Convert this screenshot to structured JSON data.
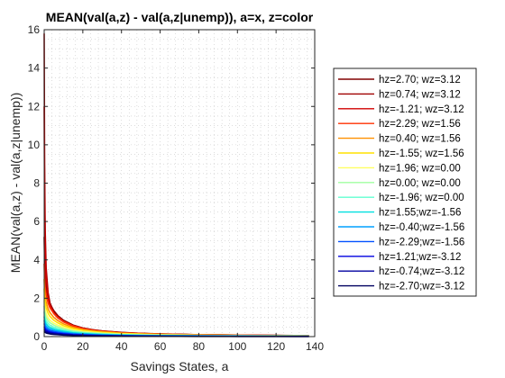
{
  "chart_data": {
    "type": "line",
    "title": "MEAN(val(a,z) - val(a,z|unemp)), a=x, z=color",
    "xlabel": "Savings States, a",
    "ylabel": "MEAN(val(a,z) - val(a,z|unemp))",
    "xlim": [
      0,
      140
    ],
    "ylim": [
      0,
      16
    ],
    "xticks": [
      0,
      20,
      40,
      60,
      80,
      100,
      120,
      140
    ],
    "yticks": [
      0,
      2,
      4,
      6,
      8,
      10,
      12,
      14,
      16
    ],
    "grid": "minor dotted",
    "legend_position": "right",
    "x": [
      0,
      0.2,
      0.5,
      1,
      2,
      3,
      5,
      7,
      10,
      15,
      20,
      25,
      30,
      40,
      50,
      60,
      70,
      80,
      90,
      100,
      110,
      120,
      130,
      137
    ],
    "series": [
      {
        "name": "hz=2.70; wz=3.12",
        "color": "#800000",
        "values": [
          5.2,
          4.0,
          3.2,
          2.6,
          2.0,
          1.7,
          1.35,
          1.1,
          0.85,
          0.6,
          0.45,
          0.36,
          0.3,
          0.22,
          0.17,
          0.14,
          0.12,
          0.1,
          0.09,
          0.08,
          0.07,
          0.06,
          0.055,
          0.05
        ]
      },
      {
        "name": "hz=0.74; wz=3.12",
        "color": "#a00000",
        "values": [
          15.8,
          9.0,
          5.6,
          3.6,
          2.3,
          1.75,
          1.3,
          1.05,
          0.82,
          0.58,
          0.44,
          0.35,
          0.29,
          0.21,
          0.17,
          0.14,
          0.12,
          0.1,
          0.09,
          0.08,
          0.07,
          0.06,
          0.055,
          0.05
        ]
      },
      {
        "name": "hz=-1.21; wz=3.12",
        "color": "#d00000",
        "values": [
          12.0,
          7.5,
          4.8,
          3.2,
          2.1,
          1.6,
          1.2,
          0.98,
          0.77,
          0.55,
          0.42,
          0.33,
          0.28,
          0.2,
          0.16,
          0.13,
          0.11,
          0.1,
          0.085,
          0.075,
          0.065,
          0.06,
          0.05,
          0.045
        ]
      },
      {
        "name": "hz=2.29; wz=1.56",
        "color": "#ff3000",
        "values": [
          3.8,
          3.1,
          2.6,
          2.2,
          1.75,
          1.5,
          1.2,
          1.0,
          0.78,
          0.56,
          0.42,
          0.34,
          0.28,
          0.2,
          0.16,
          0.13,
          0.11,
          0.095,
          0.085,
          0.075,
          0.065,
          0.058,
          0.052,
          0.048
        ]
      },
      {
        "name": "hz=0.40; wz=1.56",
        "color": "#ff9000",
        "values": [
          3.0,
          2.5,
          2.1,
          1.8,
          1.45,
          1.25,
          1.0,
          0.84,
          0.66,
          0.48,
          0.37,
          0.3,
          0.25,
          0.18,
          0.14,
          0.12,
          0.1,
          0.085,
          0.075,
          0.065,
          0.058,
          0.052,
          0.047,
          0.043
        ]
      },
      {
        "name": "hz=-1.55; wz=1.56",
        "color": "#ffe000",
        "values": [
          2.5,
          2.1,
          1.8,
          1.5,
          1.22,
          1.05,
          0.85,
          0.72,
          0.57,
          0.42,
          0.32,
          0.26,
          0.22,
          0.16,
          0.13,
          0.1,
          0.09,
          0.075,
          0.066,
          0.058,
          0.052,
          0.047,
          0.042,
          0.039
        ]
      },
      {
        "name": "hz=1.96; wz=0.00",
        "color": "#ffff60",
        "values": [
          1.9,
          1.6,
          1.4,
          1.2,
          0.98,
          0.85,
          0.7,
          0.6,
          0.48,
          0.35,
          0.27,
          0.22,
          0.18,
          0.13,
          0.11,
          0.09,
          0.075,
          0.065,
          0.057,
          0.05,
          0.045,
          0.04,
          0.037,
          0.034
        ]
      },
      {
        "name": "hz=0.00; wz=0.00",
        "color": "#a0ffa0",
        "values": [
          1.6,
          1.35,
          1.18,
          1.0,
          0.83,
          0.72,
          0.6,
          0.51,
          0.41,
          0.3,
          0.23,
          0.19,
          0.16,
          0.11,
          0.09,
          0.075,
          0.065,
          0.056,
          0.049,
          0.043,
          0.039,
          0.035,
          0.032,
          0.03
        ]
      },
      {
        "name": "hz=-1.96; wz=0.00",
        "color": "#60ffd0",
        "values": [
          1.3,
          1.1,
          0.96,
          0.82,
          0.68,
          0.59,
          0.49,
          0.42,
          0.34,
          0.25,
          0.19,
          0.16,
          0.13,
          0.095,
          0.075,
          0.063,
          0.054,
          0.047,
          0.041,
          0.036,
          0.033,
          0.03,
          0.027,
          0.025
        ]
      },
      {
        "name": "hz=1.55;wz=-1.56",
        "color": "#00e0e0",
        "values": [
          1.05,
          0.9,
          0.78,
          0.67,
          0.55,
          0.48,
          0.4,
          0.34,
          0.28,
          0.2,
          0.16,
          0.13,
          0.11,
          0.078,
          0.062,
          0.052,
          0.044,
          0.038,
          0.034,
          0.03,
          0.027,
          0.024,
          0.022,
          0.021
        ]
      },
      {
        "name": "hz=-0.40;wz=-1.56",
        "color": "#00a0ff",
        "values": [
          0.85,
          0.72,
          0.63,
          0.54,
          0.45,
          0.39,
          0.32,
          0.28,
          0.22,
          0.165,
          0.13,
          0.105,
          0.088,
          0.064,
          0.051,
          0.042,
          0.036,
          0.031,
          0.027,
          0.024,
          0.022,
          0.02,
          0.018,
          0.017
        ]
      },
      {
        "name": "hz=-2.29;wz=-1.56",
        "color": "#0050ff",
        "values": [
          0.68,
          0.58,
          0.5,
          0.43,
          0.36,
          0.31,
          0.26,
          0.22,
          0.18,
          0.13,
          0.1,
          0.083,
          0.07,
          0.051,
          0.04,
          0.033,
          0.028,
          0.025,
          0.022,
          0.019,
          0.017,
          0.016,
          0.014,
          0.013
        ]
      },
      {
        "name": "hz=1.21;wz=-3.12",
        "color": "#0000e0",
        "values": [
          0.52,
          0.45,
          0.39,
          0.34,
          0.28,
          0.24,
          0.2,
          0.17,
          0.14,
          0.1,
          0.079,
          0.064,
          0.054,
          0.039,
          0.031,
          0.026,
          0.022,
          0.019,
          0.017,
          0.015,
          0.013,
          0.012,
          0.011,
          0.01
        ]
      },
      {
        "name": "hz=-0.74;wz=-3.12",
        "color": "#0000a0",
        "values": [
          0.4,
          0.34,
          0.3,
          0.26,
          0.21,
          0.18,
          0.15,
          0.13,
          0.105,
          0.077,
          0.06,
          0.049,
          0.041,
          0.03,
          0.024,
          0.02,
          0.017,
          0.015,
          0.013,
          0.011,
          0.01,
          0.009,
          0.008,
          0.008
        ]
      },
      {
        "name": "hz=-2.70;wz=-3.12",
        "color": "#000060",
        "values": [
          0.3,
          0.26,
          0.22,
          0.19,
          0.16,
          0.14,
          0.115,
          0.1,
          0.08,
          0.058,
          0.045,
          0.037,
          0.031,
          0.023,
          0.018,
          0.015,
          0.013,
          0.011,
          0.01,
          0.009,
          0.008,
          0.007,
          0.006,
          0.006
        ]
      }
    ]
  }
}
